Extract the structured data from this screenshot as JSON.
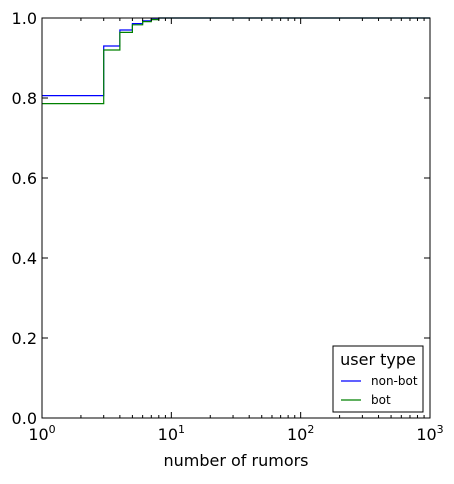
{
  "chart_data": {
    "type": "line",
    "title": "",
    "xlabel": "number of rumors",
    "ylabel": "",
    "x_scale": "log",
    "xlim": [
      1,
      1000
    ],
    "ylim": [
      0,
      1.0
    ],
    "grid": false,
    "x_ticks": [
      {
        "value": 1,
        "base": "10",
        "exp": "0"
      },
      {
        "value": 10,
        "base": "10",
        "exp": "1"
      },
      {
        "value": 100,
        "base": "10",
        "exp": "2"
      },
      {
        "value": 1000,
        "base": "10",
        "exp": "3"
      }
    ],
    "y_ticks": [
      {
        "value": 0,
        "label": "0.0"
      },
      {
        "value": 0.2,
        "label": "0.2"
      },
      {
        "value": 0.4,
        "label": "0.4"
      },
      {
        "value": 0.6,
        "label": "0.6"
      },
      {
        "value": 0.8,
        "label": "0.8"
      },
      {
        "value": 1.0,
        "label": "1.0"
      }
    ],
    "legend": {
      "title": "user type",
      "placement": "lower-right"
    },
    "series": [
      {
        "name": "non-bot",
        "color": "#0000ff",
        "step": "post",
        "points": [
          [
            1,
            0.806
          ],
          [
            3,
            0.93
          ],
          [
            4,
            0.97
          ],
          [
            5,
            0.986
          ],
          [
            6,
            0.993
          ],
          [
            7,
            0.997
          ],
          [
            8,
            1.0
          ],
          [
            1000,
            1.0
          ]
        ]
      },
      {
        "name": "bot",
        "color": "#008000",
        "step": "post",
        "points": [
          [
            1,
            0.786
          ],
          [
            3,
            0.92
          ],
          [
            4,
            0.964
          ],
          [
            5,
            0.983
          ],
          [
            6,
            0.991
          ],
          [
            7,
            0.996
          ],
          [
            8,
            1.0
          ],
          [
            1000,
            1.0
          ]
        ]
      }
    ]
  }
}
